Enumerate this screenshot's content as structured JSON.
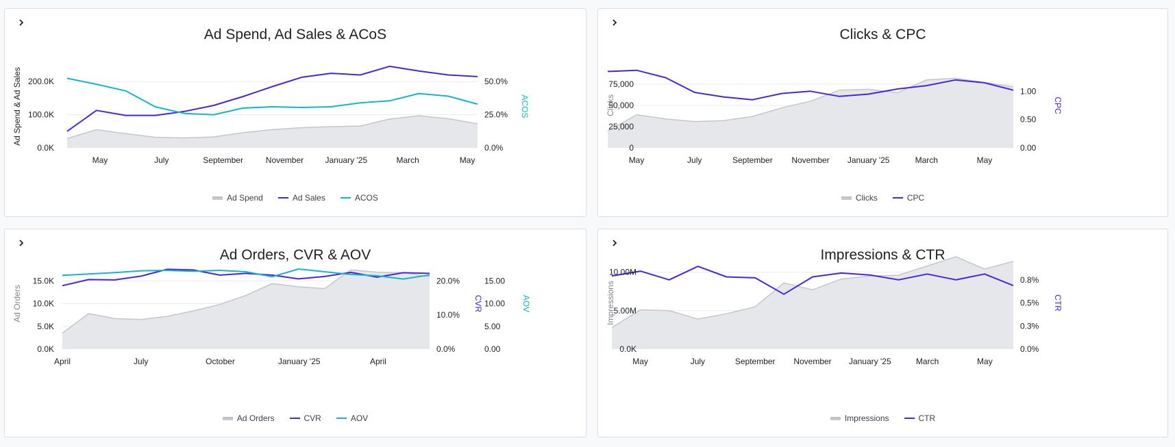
{
  "colors": {
    "area_fill": "#e6e7eb",
    "area_stroke": "#c4c6cb",
    "purple": "#4a22e0",
    "cyan": "#12b5cb",
    "grid": "#e8eaed",
    "text": "#202124",
    "axis_title_gray": "#80868b"
  },
  "icons": {
    "expand": "chevron-right-icon"
  },
  "chart_data": [
    {
      "type": "area+line",
      "title": "Ad Spend, Ad Sales & ACoS",
      "x_ticks": [
        "May",
        "July",
        "September",
        "November",
        "January '25",
        "March",
        "May"
      ],
      "left_axis": {
        "label": "Ad Spend & Ad Sales",
        "ticks": [
          "0.0K",
          "100.0K",
          "200.0K"
        ],
        "ylim": [
          0,
          250000
        ]
      },
      "right_axis": {
        "label": "ACOS",
        "ticks": [
          "0.0%",
          "25.0%",
          "50.0%"
        ],
        "ylim": [
          0,
          62.5
        ]
      },
      "series": [
        {
          "name": "Ad Spend",
          "kind": "area",
          "axis": "left",
          "values": [
            28000,
            55000,
            43000,
            32000,
            30000,
            33000,
            46000,
            55000,
            61000,
            64000,
            66000,
            87000,
            97000,
            88000,
            73000
          ]
        },
        {
          "name": "Ad Sales",
          "kind": "line",
          "axis": "left",
          "values": [
            50000,
            113000,
            98000,
            98000,
            110000,
            128000,
            155000,
            185000,
            213000,
            225000,
            220000,
            246000,
            232000,
            220000,
            215000
          ]
        },
        {
          "name": "ACOS",
          "kind": "line",
          "axis": "right",
          "values": [
            52.5,
            48,
            43,
            31,
            26,
            25,
            30,
            31,
            30.5,
            31,
            34,
            35.5,
            41,
            39,
            33
          ]
        }
      ],
      "legend": [
        "Ad Spend",
        "Ad Sales",
        "ACOS"
      ]
    },
    {
      "type": "area+line",
      "title": "Clicks & CPC",
      "x_ticks": [
        "May",
        "July",
        "September",
        "November",
        "January '25",
        "March",
        "May"
      ],
      "left_axis": {
        "label": "Clicks",
        "ticks": [
          "0",
          "25,000",
          "50,000",
          "75,000"
        ],
        "ylim": [
          0,
          100000
        ]
      },
      "right_axis": {
        "label": "CPC",
        "ticks": [
          "0.00",
          "0.50",
          "1.00"
        ],
        "ylim": [
          0,
          1.5
        ]
      },
      "series": [
        {
          "name": "Clicks",
          "kind": "area",
          "axis": "left",
          "values": [
            20000,
            39000,
            34000,
            31000,
            32000,
            37000,
            47000,
            55000,
            68000,
            69000,
            65000,
            80000,
            82000,
            77000,
            72000
          ]
        },
        {
          "name": "CPC",
          "kind": "line",
          "axis": "right",
          "values": [
            1.35,
            1.37,
            1.24,
            0.98,
            0.9,
            0.85,
            0.96,
            1.0,
            0.91,
            0.95,
            1.04,
            1.1,
            1.2,
            1.15,
            1.02
          ]
        }
      ],
      "legend": [
        "Clicks",
        "CPC"
      ]
    },
    {
      "type": "area+line",
      "title": "Ad Orders, CVR & AOV",
      "x_ticks": [
        "April",
        "July",
        "October",
        "January '25",
        "April"
      ],
      "left_axis": {
        "label": "Ad Orders",
        "ticks": [
          "0.0K",
          "5.0K",
          "10.0K",
          "15.0K"
        ],
        "ylim": [
          0,
          20000
        ]
      },
      "right_axis_1": {
        "label": "CVR",
        "ticks": [
          "0.0%",
          "10.0%",
          "20.0%"
        ],
        "ylim": [
          0,
          26.7
        ]
      },
      "right_axis_2": {
        "label": "AOV",
        "ticks": [
          "0.00",
          "5.00",
          "10.00",
          "15.00"
        ],
        "ylim": [
          0,
          20
        ]
      },
      "series": [
        {
          "name": "Ad Orders",
          "kind": "area",
          "axis": "left",
          "values": [
            3500,
            7800,
            6700,
            6500,
            7200,
            8400,
            9800,
            11800,
            14400,
            13700,
            13300,
            17400,
            16900,
            16800,
            15900
          ]
        },
        {
          "name": "CVR",
          "kind": "line",
          "axis": "right1",
          "values": [
            18.6,
            20.4,
            20.3,
            21.4,
            23.4,
            23.2,
            21.7,
            22.2,
            21.7,
            20.6,
            21.3,
            22.5,
            21.1,
            22.4,
            22.2
          ]
        },
        {
          "name": "AOV",
          "kind": "line",
          "axis": "right2",
          "values": [
            16.2,
            16.5,
            16.8,
            17.2,
            17.3,
            17.1,
            17.3,
            17.0,
            15.9,
            17.6,
            17.0,
            16.4,
            16.1,
            15.4,
            16.3
          ]
        }
      ],
      "legend": [
        "Ad Orders",
        "CVR",
        "AOV"
      ]
    },
    {
      "type": "area+line",
      "title": "Impressions & CTR",
      "x_ticks": [
        "May",
        "July",
        "September",
        "November",
        "January '25",
        "March",
        "May"
      ],
      "left_axis": {
        "label": "Impressions",
        "ticks": [
          "0.0K",
          "5.00M",
          "10.00M"
        ],
        "ylim": [
          0,
          12000000
        ]
      },
      "right_axis": {
        "label": "CTR",
        "ticks": [
          "0.0%",
          "0.3%",
          "0.5%",
          "0.8%"
        ],
        "ylim": [
          0,
          0.96
        ]
      },
      "series": [
        {
          "name": "Impressions",
          "kind": "area",
          "axis": "left",
          "values": [
            2800000,
            5100000,
            5000000,
            3900000,
            4600000,
            5500000,
            8600000,
            7700000,
            9100000,
            9500000,
            9600000,
            10800000,
            12000000,
            10400000,
            11400000
          ]
        },
        {
          "name": "CTR",
          "kind": "line",
          "axis": "right",
          "values": [
            0.76,
            0.81,
            0.72,
            0.86,
            0.75,
            0.74,
            0.57,
            0.75,
            0.79,
            0.77,
            0.72,
            0.78,
            0.72,
            0.78,
            0.66
          ]
        }
      ],
      "legend": [
        "Impressions",
        "CTR"
      ]
    }
  ]
}
